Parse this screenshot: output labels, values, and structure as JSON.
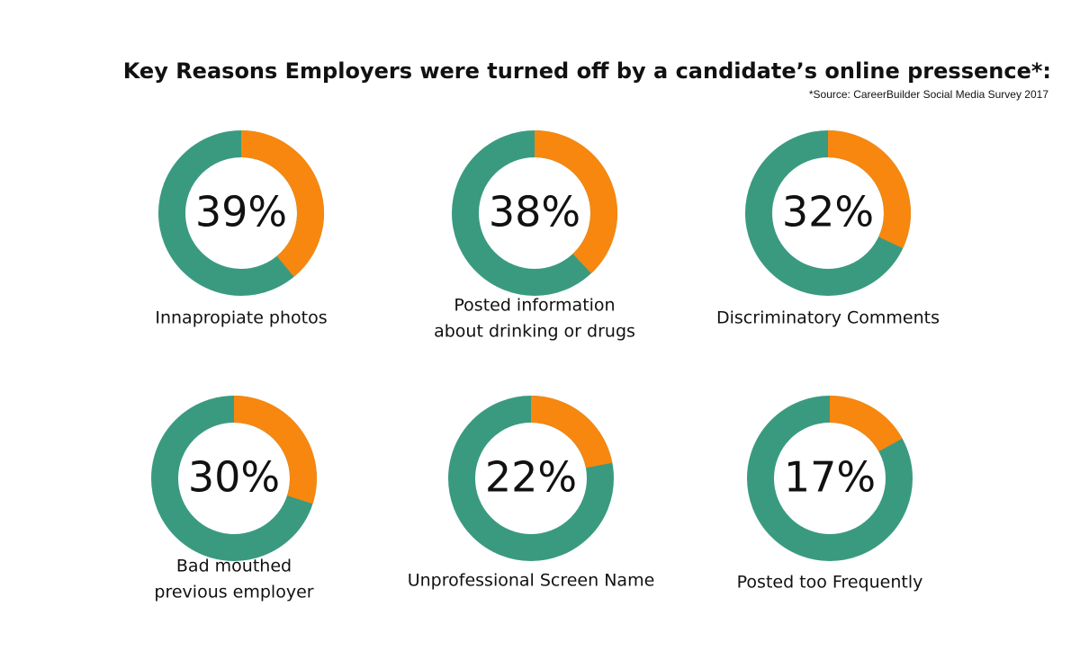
{
  "title": "Key Reasons Employers were turned off by a candidate’s online pressence*:",
  "source": "*Source: CareerBuilder Social Media Survey 2017",
  "chart_data": [
    {
      "type": "donut",
      "label": [
        "Innapropiate photos"
      ],
      "values": [
        39
      ],
      "value_labels": [
        "39%"
      ],
      "color": "#f7870f",
      "track_color": "#3a9a80"
    },
    {
      "type": "donut",
      "label": [
        "Posted information",
        "about drinking or drugs"
      ],
      "values": [
        38
      ],
      "value_labels": [
        "38%"
      ],
      "color": "#f7870f",
      "track_color": "#3a9a80"
    },
    {
      "type": "donut",
      "label": [
        "Discriminatory Comments"
      ],
      "values": [
        32
      ],
      "value_labels": [
        "32%"
      ],
      "color": "#f7870f",
      "track_color": "#3a9a80"
    },
    {
      "type": "donut",
      "label": [
        "Bad mouthed",
        "previous employer"
      ],
      "values": [
        30
      ],
      "value_labels": [
        "30%"
      ],
      "color": "#f7870f",
      "track_color": "#3a9a80"
    },
    {
      "type": "donut",
      "label": [
        "Unprofessional Screen Name"
      ],
      "values": [
        22
      ],
      "value_labels": [
        "22%"
      ],
      "color": "#f7870f",
      "track_color": "#3a9a80"
    },
    {
      "type": "donut",
      "label": [
        "Posted too Frequently"
      ],
      "values": [
        17
      ],
      "value_labels": [
        "17%"
      ],
      "color": "#f7870f",
      "track_color": "#3a9a80"
    }
  ]
}
